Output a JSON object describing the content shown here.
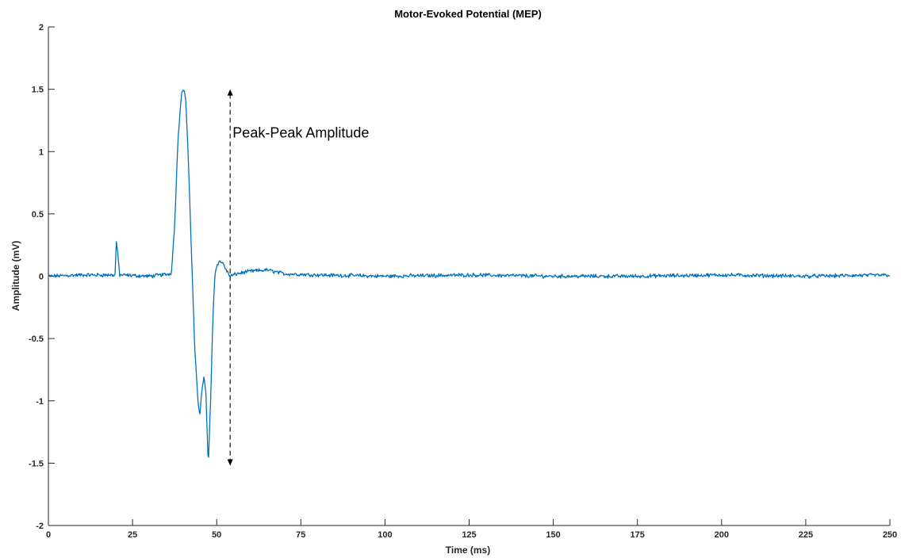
{
  "chart_data": {
    "type": "line",
    "title": "Motor-Evoked Potential (MEP)",
    "xlabel": "Time (ms)",
    "ylabel": "Amplitude (mV)",
    "xlim": [
      0,
      250
    ],
    "ylim": [
      -2,
      2
    ],
    "xticks": [
      0,
      25,
      50,
      75,
      100,
      125,
      150,
      175,
      200,
      225,
      250
    ],
    "yticks": [
      2,
      1.5,
      1,
      0.5,
      0,
      -0.5,
      -1,
      -1.5,
      -2
    ],
    "xtick_labels": [
      "0",
      "25",
      "50",
      "75",
      "100",
      "125",
      "150",
      "175",
      "200",
      "225",
      "250"
    ],
    "ytick_labels": [
      "2",
      "1.5",
      "1",
      "0.5",
      "0",
      "-0.5",
      "-1",
      "-1.5",
      "-2"
    ],
    "grid": false,
    "series": [
      {
        "color": "#0072BD",
        "x": [
          0,
          10,
          19.8,
          20.2,
          20.6,
          21.2,
          30,
          36.5,
          37.5,
          38.5,
          39.5,
          40.2,
          40.8,
          41.5,
          42.5,
          43.5,
          44.5,
          45,
          45.5,
          46.2,
          46.8,
          47.5,
          48.2,
          48.9,
          49.5,
          50.2,
          51,
          52,
          53,
          54,
          56,
          60,
          65,
          70,
          80,
          100,
          125,
          150,
          175,
          200,
          225,
          250
        ],
        "y": [
          0.0,
          0.01,
          0.01,
          0.28,
          0.18,
          0.01,
          0.0,
          0.02,
          0.4,
          1.1,
          1.46,
          1.5,
          1.42,
          1.0,
          0.2,
          -0.6,
          -1.02,
          -1.1,
          -0.95,
          -0.8,
          -0.95,
          -1.52,
          -1.0,
          -0.3,
          0.02,
          0.1,
          0.12,
          0.1,
          0.04,
          0.0,
          0.02,
          0.04,
          0.05,
          0.02,
          0.01,
          0.0,
          0.01,
          0.0,
          0.0,
          0.01,
          0.0,
          0.01
        ]
      }
    ],
    "annotations": [
      {
        "text": "Peak-Peak Amplitude",
        "x": 54.5,
        "y": 1.15
      },
      {
        "type": "double-arrow",
        "style": "dashed",
        "x": 54,
        "y_from": 1.5,
        "y_to": -1.52
      }
    ],
    "noise_amplitude": 0.012
  }
}
